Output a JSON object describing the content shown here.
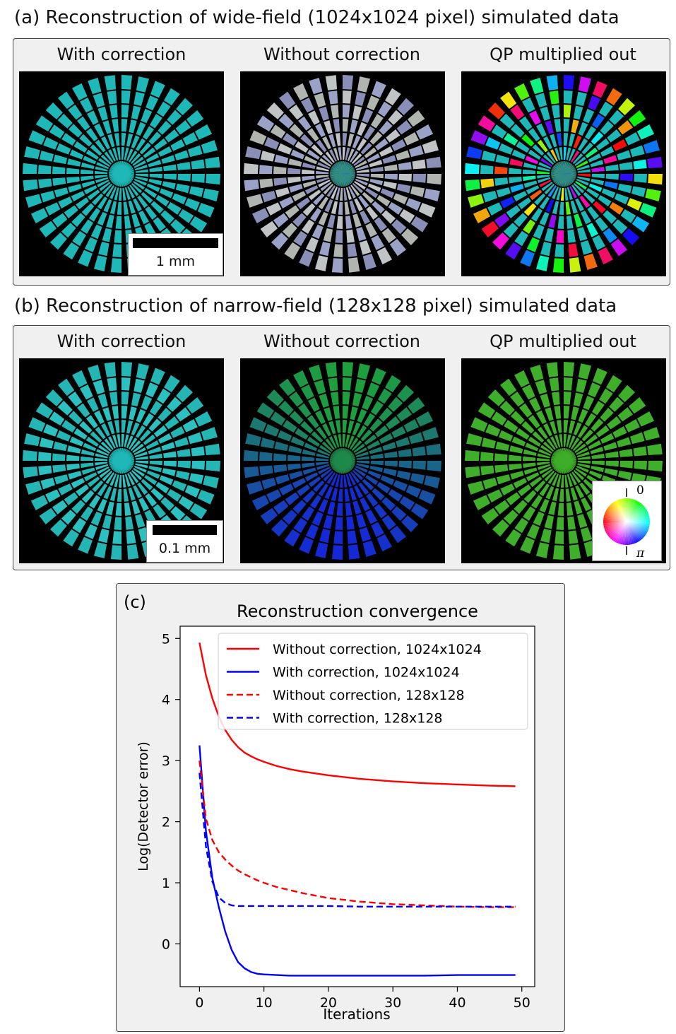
{
  "section_a": {
    "title": "(a) Reconstruction of wide-field (1024x1024 pixel) simulated data",
    "col1": "With correction",
    "col2": "Without correction",
    "col3": "QP multiplied out",
    "scalebar": "1 mm"
  },
  "section_b": {
    "title": "(b) Reconstruction of narrow-field (128x128 pixel) simulated data",
    "col1": "With correction",
    "col2": "Without correction",
    "col3": "QP multiplied out",
    "scalebar": "0.1 mm",
    "phase_top": "0",
    "phase_bottom": "π"
  },
  "colors": {
    "cyan": "#1fb8b8",
    "green": "#3fae2a",
    "blue": "#1d37d6",
    "red": "#ff0000"
  },
  "chart_data": {
    "type": "line",
    "panel_label": "(c)",
    "title": "Reconstruction convergence",
    "xlabel": "Iterations",
    "ylabel": "Log(Detector error)",
    "xlim": [
      -3,
      52
    ],
    "ylim": [
      -0.7,
      5.2
    ],
    "xticks": [
      0,
      10,
      20,
      30,
      40,
      50
    ],
    "yticks": [
      0,
      1,
      2,
      3,
      4,
      5
    ],
    "legend_position": "top-right",
    "x": [
      0,
      1,
      2,
      3,
      4,
      5,
      6,
      7,
      8,
      9,
      10,
      12,
      14,
      16,
      18,
      20,
      25,
      30,
      35,
      40,
      45,
      49
    ],
    "series": [
      {
        "name": "Without correction, 1024x1024",
        "color": "#ff0000",
        "dash": "solid",
        "values": [
          4.93,
          4.4,
          4.02,
          3.72,
          3.5,
          3.34,
          3.22,
          3.13,
          3.07,
          3.02,
          2.98,
          2.91,
          2.86,
          2.82,
          2.79,
          2.76,
          2.7,
          2.66,
          2.63,
          2.61,
          2.59,
          2.58
        ]
      },
      {
        "name": "With correction, 1024x1024",
        "color": "#0000ff",
        "dash": "solid",
        "values": [
          3.25,
          1.85,
          1.08,
          0.6,
          0.2,
          -0.1,
          -0.3,
          -0.4,
          -0.46,
          -0.49,
          -0.5,
          -0.51,
          -0.52,
          -0.52,
          -0.52,
          -0.52,
          -0.52,
          -0.52,
          -0.52,
          -0.51,
          -0.51,
          -0.51
        ]
      },
      {
        "name": "Without correction, 128x128",
        "color": "#ff0000",
        "dash": "dashed",
        "values": [
          3.0,
          2.05,
          1.7,
          1.5,
          1.38,
          1.28,
          1.2,
          1.14,
          1.09,
          1.04,
          1.0,
          0.93,
          0.88,
          0.83,
          0.79,
          0.75,
          0.69,
          0.65,
          0.63,
          0.61,
          0.6,
          0.6
        ]
      },
      {
        "name": "With correction, 128x128",
        "color": "#0000ff",
        "dash": "dashed",
        "values": [
          2.8,
          1.6,
          1.02,
          0.76,
          0.67,
          0.63,
          0.62,
          0.62,
          0.62,
          0.62,
          0.62,
          0.62,
          0.62,
          0.62,
          0.62,
          0.62,
          0.61,
          0.61,
          0.61,
          0.61,
          0.61,
          0.61
        ]
      }
    ]
  }
}
